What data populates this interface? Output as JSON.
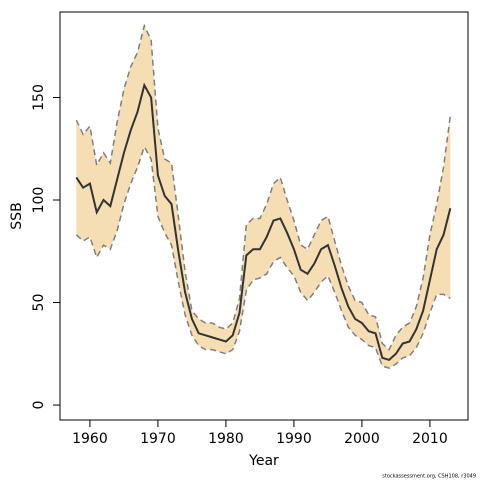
{
  "chart_data": {
    "type": "band-line",
    "xlabel": "Year",
    "ylabel": "SSB",
    "caption": "stockassessment.org, CSH108, r3049",
    "x": [
      1958,
      1959,
      1960,
      1961,
      1962,
      1963,
      1964,
      1965,
      1966,
      1967,
      1968,
      1969,
      1970,
      1971,
      1972,
      1973,
      1974,
      1975,
      1976,
      1977,
      1978,
      1979,
      1980,
      1981,
      1982,
      1983,
      1984,
      1985,
      1986,
      1987,
      1988,
      1989,
      1990,
      1991,
      1992,
      1993,
      1994,
      1995,
      1996,
      1997,
      1998,
      1999,
      2000,
      2001,
      2002,
      2003,
      2004,
      2005,
      2006,
      2007,
      2008,
      2009,
      2010,
      2011,
      2012,
      2013
    ],
    "values": [
      111,
      106,
      108,
      94,
      100,
      97,
      110,
      123,
      134,
      143,
      156,
      150,
      112,
      102,
      98,
      75,
      55,
      42,
      35,
      34,
      33,
      32,
      31,
      34,
      45,
      73,
      76,
      76,
      82,
      90,
      91,
      84,
      76,
      66,
      64,
      69,
      76,
      78,
      68,
      57,
      48,
      42,
      40,
      36,
      35,
      23,
      22,
      25,
      30,
      31,
      37,
      46,
      61,
      76,
      83,
      96
    ],
    "upper": [
      139,
      132,
      136,
      117,
      123,
      118,
      138,
      154,
      165,
      172,
      185,
      178,
      135,
      120,
      118,
      92,
      65,
      46,
      42,
      40,
      40,
      38,
      37,
      40,
      52,
      88,
      91,
      91,
      98,
      108,
      111,
      100,
      90,
      78,
      76,
      83,
      90,
      92,
      80,
      68,
      58,
      51,
      50,
      44,
      43,
      30,
      27,
      34,
      38,
      40,
      48,
      62,
      83,
      98,
      116,
      141
    ],
    "lower": [
      83,
      80,
      82,
      72,
      78,
      76,
      85,
      98,
      108,
      116,
      126,
      120,
      92,
      84,
      78,
      60,
      44,
      34,
      29,
      27,
      27,
      26,
      25,
      27,
      36,
      56,
      61,
      62,
      64,
      70,
      72,
      67,
      63,
      55,
      51,
      55,
      60,
      63,
      55,
      46,
      38,
      34,
      32,
      29,
      28,
      19,
      18,
      20,
      23,
      24,
      28,
      35,
      45,
      54,
      54,
      52
    ],
    "line_color": "#333333",
    "band_color": "#f5deb3",
    "band_edge_color": "#7f7f7f",
    "xlim": [
      1955.6,
      2015.6
    ],
    "ylim": [
      -7.3,
      191.7
    ],
    "xticks": [
      1960,
      1970,
      1980,
      1990,
      2000,
      2010
    ],
    "yticks": [
      0,
      50,
      100,
      150
    ]
  }
}
